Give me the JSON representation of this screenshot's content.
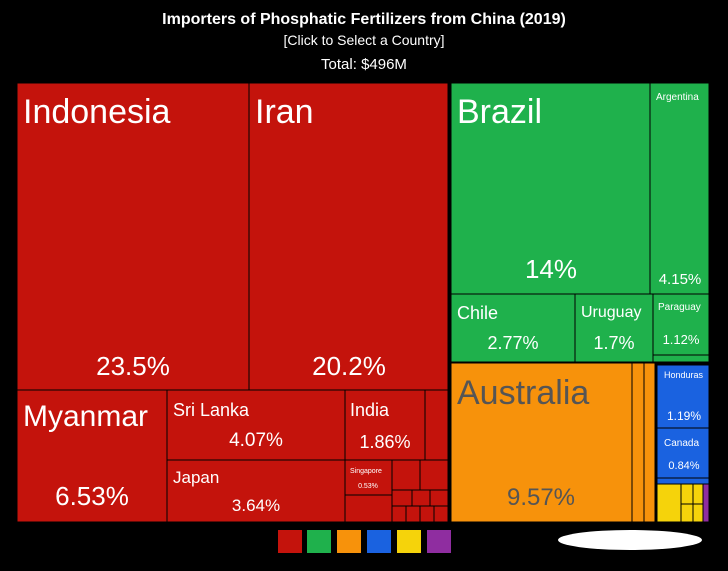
{
  "chart_data": {
    "type": "treemap",
    "title": "Importers of Phosphatic Fertilizers from China (2019)",
    "subtitle": "[Click to Select a Country]",
    "annotation": "Total: $496M",
    "categories": [
      "Indonesia",
      "Iran",
      "Myanmar",
      "Sri Lanka",
      "Japan",
      "India",
      "Singapore",
      "Brazil",
      "Argentina",
      "Chile",
      "Uruguay",
      "Paraguay",
      "Australia",
      "Honduras",
      "Canada"
    ],
    "values": [
      23.5,
      20.2,
      6.53,
      4.07,
      3.64,
      1.86,
      0.53,
      14,
      4.15,
      2.77,
      1.7,
      1.12,
      9.57,
      1.19,
      0.84
    ],
    "value_labels": [
      "23.5%",
      "20.2%",
      "6.53%",
      "4.07%",
      "3.64%",
      "1.86%",
      "0.53%",
      "14%",
      "4.15%",
      "2.77%",
      "1.7%",
      "1.12%",
      "9.57%",
      "1.19%",
      "0.84%"
    ],
    "colors": [
      "#c4130c",
      "#c4130c",
      "#c4130c",
      "#c4130c",
      "#c4130c",
      "#c4130c",
      "#c4130c",
      "#1fb14c",
      "#1fb14c",
      "#1fb14c",
      "#1fb14c",
      "#1fb14c",
      "#f7920b",
      "#1a62e0",
      "#1a62e0"
    ]
  }
}
